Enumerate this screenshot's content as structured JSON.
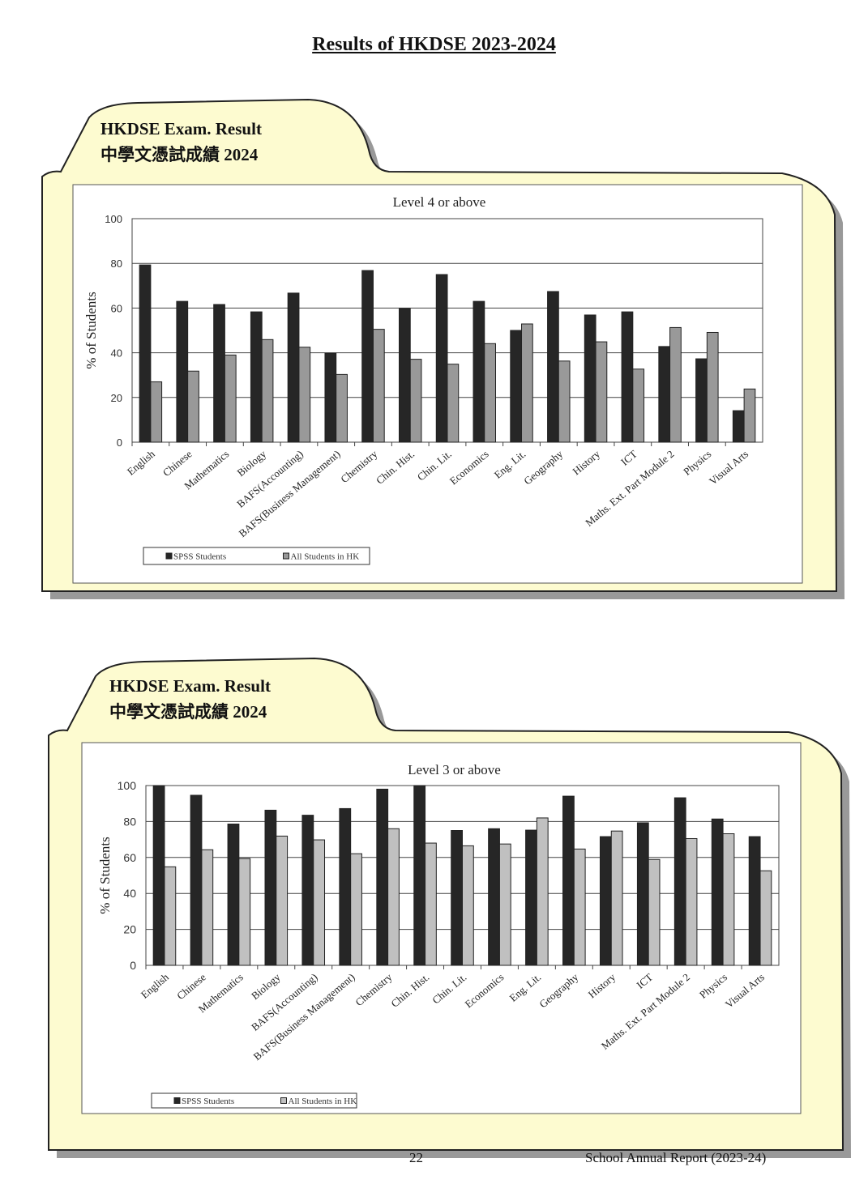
{
  "page_title": "Results of HKDSE 2023-2024",
  "footer": {
    "page_number": "22",
    "report": "School Annual Report (2023-24)"
  },
  "colors": {
    "spss": "#262626",
    "hk_level4": "#999999",
    "hk_level3": "#c0c0c0",
    "folder": "#fdfbd0"
  },
  "chart_data": [
    {
      "type": "bar",
      "tab_title": "HKDSE Exam. Result",
      "tab_subtitle": "中學文憑試成績 2024",
      "title": "Level 4 or above",
      "xlabel": "",
      "ylabel": "% of Students",
      "ylim": [
        0,
        100
      ],
      "yticks": [
        "0",
        "20",
        "40",
        "60",
        "80",
        "100"
      ],
      "grid": true,
      "legend_position": "bottom-left",
      "categories": [
        "English",
        "Chinese",
        "Mathematics",
        "Biology",
        "BAFS(Accounting)",
        "BAFS(Business Management)",
        "Chemistry",
        "Chin. Hist.",
        "Chin. Lit.",
        "Economics",
        "Eng. Lit.",
        "Geography",
        "History",
        "ICT",
        "Maths. Ext. Part Module 2",
        "Physics",
        "Visual Arts"
      ],
      "series": [
        {
          "name": "SPSS Students",
          "values": [
            79.3,
            63,
            61.6,
            58.3,
            66.7,
            39.8,
            76.8,
            59.8,
            75,
            63,
            50,
            67.4,
            56.9,
            58.3,
            42.8,
            37.3,
            14.1
          ]
        },
        {
          "name": "All Students in HK",
          "values": [
            27,
            31.8,
            39,
            45.9,
            42.5,
            30.3,
            50.5,
            37.1,
            34.9,
            44.1,
            52.9,
            36.3,
            44.9,
            32.7,
            51.3,
            49.1,
            23.8
          ]
        }
      ]
    },
    {
      "type": "bar",
      "tab_title": "HKDSE Exam. Result",
      "tab_subtitle": "中學文憑試成績 2024",
      "title": "Level 3 or above",
      "xlabel": "",
      "ylabel": "% of Students",
      "ylim": [
        0,
        100
      ],
      "yticks": [
        "0",
        "20",
        "40",
        "60",
        "80",
        "100"
      ],
      "grid": true,
      "legend_position": "bottom-left",
      "categories": [
        "English",
        "Chinese",
        "Mathematics",
        "Biology",
        "BAFS(Accounting)",
        "BAFS(Business Management)",
        "Chemistry",
        "Chin. Hist.",
        "Chin. Lit.",
        "Economics",
        "Eng. Lit.",
        "Geography",
        "History",
        "ICT",
        "Maths. Ext. Part Module 2",
        "Physics",
        "Visual Arts"
      ],
      "series": [
        {
          "name": "SPSS Students",
          "values": [
            100,
            94.6,
            78.6,
            86.3,
            83.5,
            87.2,
            98,
            100,
            75,
            76,
            75.2,
            94.1,
            71.6,
            79.3,
            93.2,
            81.4,
            71.6
          ]
        },
        {
          "name": "All Students in HK",
          "values": [
            54.8,
            64.3,
            59.4,
            71.9,
            69.8,
            62.1,
            76,
            68,
            66.5,
            67.5,
            82,
            64.7,
            74.7,
            58.9,
            70.5,
            73.2,
            52.6
          ]
        }
      ]
    }
  ]
}
